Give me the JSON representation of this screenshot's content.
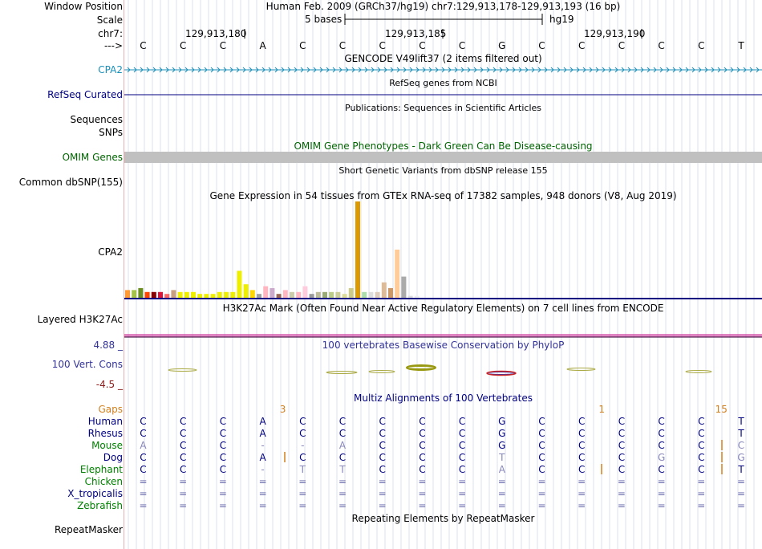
{
  "header": {
    "window_position_label": "Window Position",
    "window_position_value": "Human Feb. 2009 (GRCh37/hg19)   chr7:129,913,178-129,913,193 (16 bp)",
    "scale_label": "Scale",
    "scale_text": "5 bases",
    "scale_assembly": "hg19",
    "chrom_label": "chr7:",
    "coords": [
      "129,913,180",
      "129,913,185",
      "129,913,190"
    ],
    "strand_label": "--->"
  },
  "bases": [
    "C",
    "C",
    "C",
    "A",
    "C",
    "C",
    "C",
    "C",
    "C",
    "G",
    "C",
    "C",
    "C",
    "C",
    "C",
    "T"
  ],
  "tracks": {
    "gencode_title": "GENCODE V49lift37 (2 items filtered out)",
    "gencode_gene": "CPA2",
    "refseq_title": "RefSeq genes from NCBI",
    "refseq_label": "RefSeq Curated",
    "publications_title": "Publications: Sequences in Scientific Articles",
    "sequences_label": "Sequences",
    "snps_label": "SNPs",
    "omim_title": "OMIM Gene Phenotypes - Dark Green Can Be Disease-causing",
    "omim_label": "OMIM Genes",
    "dbsnp_title": "Short Genetic Variants from dbSNP release 155",
    "dbsnp_label": "Common dbSNP(155)",
    "gtex_title": "Gene Expression in 54 tissues from GTEx RNA-seq of 17382 samples, 948 donors (V8, Aug 2019)",
    "gtex_gene": "CPA2",
    "h3k27_title": "H3K27Ac Mark (Often Found Near Active Regulatory Elements) on 7 cell lines from ENCODE",
    "h3k27_label": "Layered H3K27Ac",
    "cons_title": "100 vertebrates Basewise Conservation by PhyloP",
    "cons_label": "100 Vert. Cons",
    "cons_max": "4.88 _",
    "cons_min": "-4.5 _",
    "multiz_title": "Multiz Alignments of 100 Vertebrates",
    "repeat_title": "Repeating Elements by RepeatMasker",
    "repeat_label": "RepeatMasker"
  },
  "gaps": {
    "label": "Gaps",
    "items": [
      {
        "col": 3,
        "text": "3"
      },
      {
        "col": 11,
        "text": "1"
      },
      {
        "col": 14,
        "text": "15"
      }
    ]
  },
  "species": [
    {
      "name": "Human",
      "color": "#000080",
      "bases": [
        "C",
        "C",
        "C",
        "A",
        "C",
        "C",
        "C",
        "C",
        "C",
        "G",
        "C",
        "C",
        "C",
        "C",
        "C",
        "T"
      ]
    },
    {
      "name": "Rhesus",
      "color": "#000080",
      "bases": [
        "C",
        "C",
        "C",
        "A",
        "C",
        "C",
        "C",
        "C",
        "C",
        "G",
        "C",
        "C",
        "C",
        "C",
        "C",
        "T"
      ]
    },
    {
      "name": "Mouse",
      "color": "#008000",
      "bases": [
        "A",
        "C",
        "C",
        "-",
        "-",
        "A",
        "C",
        "C",
        "C",
        "G",
        "C",
        "C",
        "C",
        "C",
        "C",
        "C"
      ]
    },
    {
      "name": "Dog",
      "color": "#000080",
      "bases": [
        "C",
        "C",
        "C",
        "A",
        "C",
        "C",
        "C",
        "C",
        "C",
        "T",
        "C",
        "C",
        "C",
        "G",
        "C",
        "G"
      ]
    },
    {
      "name": "Elephant",
      "color": "#008000",
      "bases": [
        "C",
        "C",
        "C",
        "-",
        "T",
        "T",
        "C",
        "C",
        "C",
        "A",
        "C",
        "C",
        "C",
        "C",
        "C",
        "T"
      ]
    },
    {
      "name": "Chicken",
      "color": "#008000",
      "bases": [
        "=",
        "=",
        "=",
        "=",
        "=",
        "=",
        "=",
        "=",
        "=",
        "=",
        "=",
        "=",
        "=",
        "=",
        "=",
        "="
      ]
    },
    {
      "name": "X_tropicalis",
      "color": "#000080",
      "bases": [
        "=",
        "=",
        "=",
        "=",
        "=",
        "=",
        "=",
        "=",
        "=",
        "=",
        "=",
        "=",
        "=",
        "=",
        "=",
        "="
      ]
    },
    {
      "name": "Zebrafish",
      "color": "#008000",
      "bases": [
        "=",
        "=",
        "=",
        "=",
        "=",
        "=",
        "=",
        "=",
        "=",
        "=",
        "=",
        "=",
        "=",
        "=",
        "=",
        "="
      ]
    }
  ],
  "gtex_values": [
    {
      "color": "#ff9933",
      "value": 4
    },
    {
      "color": "#a5c447",
      "value": 4
    },
    {
      "color": "#6b8e23",
      "value": 5
    },
    {
      "color": "#ff4500",
      "value": 3
    },
    {
      "color": "#8b0000",
      "value": 3
    },
    {
      "color": "#dc143c",
      "value": 3
    },
    {
      "color": "#ff6666",
      "value": 2
    },
    {
      "color": "#c8a080",
      "value": 4
    },
    {
      "color": "#eeee00",
      "value": 3
    },
    {
      "color": "#eeee00",
      "value": 3
    },
    {
      "color": "#eeee00",
      "value": 3
    },
    {
      "color": "#eeee00",
      "value": 2
    },
    {
      "color": "#eeee00",
      "value": 2
    },
    {
      "color": "#eeee00",
      "value": 2
    },
    {
      "color": "#eeee00",
      "value": 3
    },
    {
      "color": "#eeee00",
      "value": 3
    },
    {
      "color": "#eeee00",
      "value": 3
    },
    {
      "color": "#eeee00",
      "value": 14
    },
    {
      "color": "#eeee00",
      "value": 7
    },
    {
      "color": "#ffd700",
      "value": 4
    },
    {
      "color": "#a0a0a0",
      "value": 2
    },
    {
      "color": "#ffb6c1",
      "value": 6
    },
    {
      "color": "#ccaacc",
      "value": 5
    },
    {
      "color": "#996655",
      "value": 2
    },
    {
      "color": "#ffb6c1",
      "value": 4
    },
    {
      "color": "#ccccaa",
      "value": 3
    },
    {
      "color": "#ffb6c1",
      "value": 3
    },
    {
      "color": "#ffccdd",
      "value": 6
    },
    {
      "color": "#999999",
      "value": 2
    },
    {
      "color": "#bbbb99",
      "value": 3
    },
    {
      "color": "#99aa77",
      "value": 3
    },
    {
      "color": "#bbcc88",
      "value": 3
    },
    {
      "color": "#cccc99",
      "value": 3
    },
    {
      "color": "#dddd99",
      "value": 2
    },
    {
      "color": "#cccc88",
      "value": 5
    },
    {
      "color": "#dd9900",
      "value": 50
    },
    {
      "color": "#aaddaa",
      "value": 3
    },
    {
      "color": "#dddddd",
      "value": 3
    },
    {
      "color": "#ddccbb",
      "value": 3
    },
    {
      "color": "#ddbb99",
      "value": 8
    },
    {
      "color": "#cc9966",
      "value": 5
    },
    {
      "color": "#ffcc99",
      "value": 25
    },
    {
      "color": "#aaaaaa",
      "value": 11
    },
    {
      "color": "#dddddd",
      "value": 1
    },
    {
      "color": "#eeeeee",
      "value": 1
    }
  ]
}
